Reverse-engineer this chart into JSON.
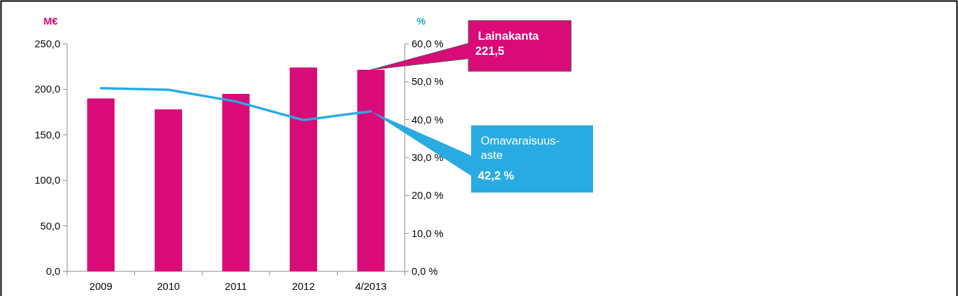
{
  "chart_data": {
    "type": "bar",
    "ylabel": "M€",
    "y2label": "%",
    "categories": [
      "2009",
      "2010",
      "2011",
      "2012",
      "4/2013"
    ],
    "series": [
      {
        "name": "Lainakanta",
        "axis": "y",
        "color": "#d80b78",
        "values": [
          190,
          178,
          195,
          224,
          221.5
        ]
      },
      {
        "name": "Omavaraisuus-aste",
        "type": "line",
        "axis": "y2",
        "color": "#29abe2",
        "values": [
          48.3,
          47.9,
          44.8,
          39.9,
          42.2
        ]
      }
    ],
    "annotations": [
      "221,5",
      "42,2 %"
    ],
    "ylim": [
      0,
      250
    ],
    "yticks": [
      {
        "value": 0,
        "label": "0,0"
      },
      {
        "value": 50,
        "label": "50,0"
      },
      {
        "value": 100,
        "label": "100,0"
      },
      {
        "value": 150,
        "label": "150,0"
      },
      {
        "value": 200,
        "label": "200,0"
      },
      {
        "value": 250,
        "label": "250,0"
      }
    ],
    "y2lim": [
      0,
      60
    ],
    "y2ticks": [
      {
        "value": 0,
        "label": "0,0 %"
      },
      {
        "value": 10,
        "label": "10,0 %"
      },
      {
        "value": 20,
        "label": "20,0 %"
      },
      {
        "value": 30,
        "label": "30,0 %"
      },
      {
        "value": 40,
        "label": "40,0 %"
      },
      {
        "value": 50,
        "label": "50,0 %"
      },
      {
        "value": 60,
        "label": "60,0 %"
      }
    ],
    "marker": "none",
    "line_style": "solid"
  }
}
